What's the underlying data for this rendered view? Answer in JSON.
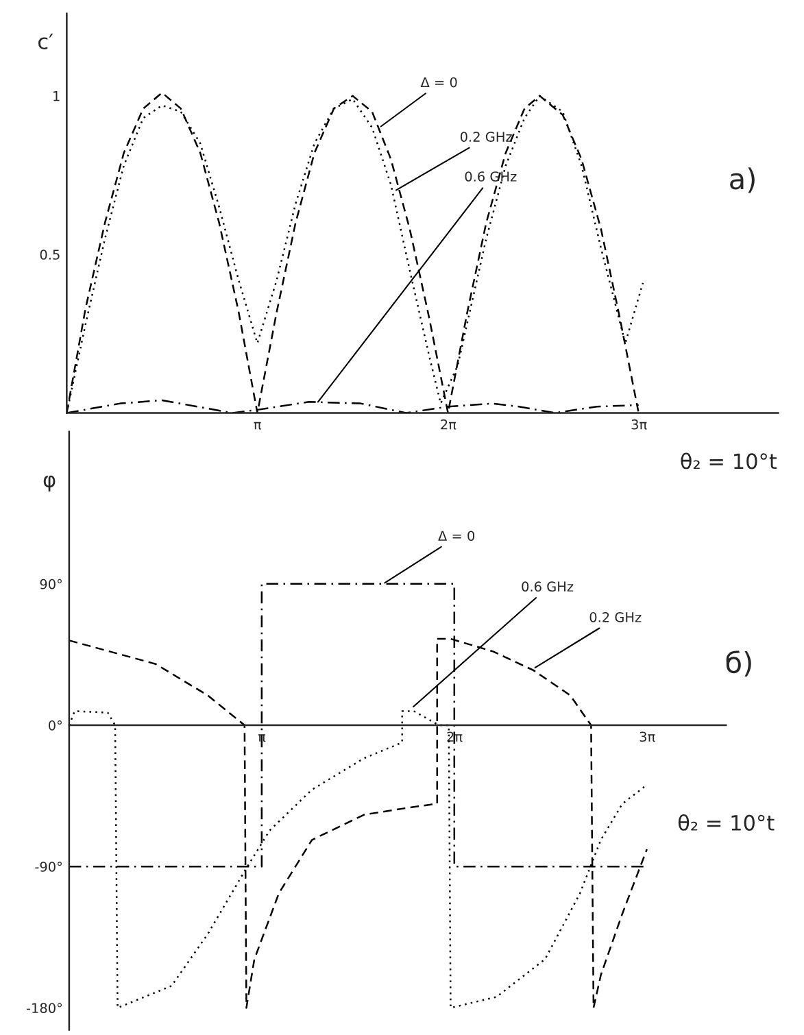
{
  "chart_data": [
    {
      "type": "line",
      "ylabel": "c′",
      "xlabel": "θ₂ = 10°t",
      "xlim": [
        0,
        11.72
      ],
      "ylim": [
        0,
        1.26
      ],
      "xticks": [
        {
          "value": 3.1416,
          "label": "π"
        },
        {
          "value": 6.2832,
          "label": "2π"
        },
        {
          "value": 9.4248,
          "label": "3π"
        }
      ],
      "yticks": [
        0.5,
        1
      ],
      "grid": false,
      "legend": false,
      "series": [
        {
          "color": "#000000",
          "line_style": "dashed",
          "x": [
            0,
            0.31,
            0.63,
            0.94,
            1.26,
            1.57,
            1.88,
            2.2,
            2.51,
            2.83,
            3.14,
            3.46,
            3.77,
            4.08,
            4.4,
            4.71,
            5.03,
            5.34,
            5.65,
            5.97,
            6.28,
            6.6,
            6.91,
            7.23,
            7.54,
            7.79,
            8.17,
            8.48,
            8.8,
            9.11,
            9.42
          ],
          "values": [
            0,
            0.33,
            0.6,
            0.82,
            0.96,
            1.01,
            0.96,
            0.82,
            0.6,
            0.32,
            0,
            0.32,
            0.6,
            0.82,
            0.96,
            1.0,
            0.95,
            0.8,
            0.58,
            0.3,
            0,
            0.32,
            0.6,
            0.82,
            0.96,
            1.0,
            0.94,
            0.8,
            0.58,
            0.3,
            0
          ]
        },
        {
          "color": "#000000",
          "line_style": "dotted",
          "x": [
            0,
            0.31,
            0.63,
            0.94,
            1.26,
            1.57,
            1.88,
            2.2,
            2.51,
            2.83,
            3.14,
            3.46,
            3.77,
            4.08,
            4.4,
            4.71,
            5.03,
            5.34,
            5.65,
            5.97,
            6.16,
            6.44,
            6.91,
            7.23,
            7.54,
            7.79,
            8.17,
            8.48,
            8.8,
            9.2,
            9.49
          ],
          "values": [
            0,
            0.28,
            0.55,
            0.78,
            0.93,
            0.97,
            0.95,
            0.85,
            0.65,
            0.42,
            0.22,
            0.42,
            0.66,
            0.85,
            0.96,
            0.99,
            0.9,
            0.72,
            0.45,
            0.18,
            0.03,
            0.15,
            0.55,
            0.78,
            0.93,
            1.0,
            0.95,
            0.78,
            0.52,
            0.22,
            0.41
          ]
        },
        {
          "color": "#000000",
          "line_style": "dashdot",
          "x": [
            0,
            0.88,
            1.57,
            2.73,
            3.14,
            3.99,
            4.84,
            5.59,
            6.28,
            7.01,
            7.45,
            8.04,
            8.73,
            9.42
          ],
          "values": [
            0,
            0.03,
            0.04,
            0,
            0.01,
            0.035,
            0.03,
            0,
            0.02,
            0.03,
            0.02,
            0,
            0.02,
            0.025
          ]
        }
      ],
      "annotations": [
        {
          "text": "Δ = 0",
          "x": 5.15,
          "y": 0.9
        },
        {
          "text": "0.2 GHz",
          "x": 5.4,
          "y": 0.7
        },
        {
          "text": "0.6 GHz",
          "x": 4.12,
          "y": 0.03
        },
        "а)"
      ]
    },
    {
      "type": "line",
      "ylabel": "φ",
      "xlabel": "θ₂ = 10°t",
      "xlim": [
        0,
        10.71
      ],
      "ylim": [
        -194,
        187
      ],
      "xticks": [
        {
          "value": 3.1416,
          "label": "π"
        },
        {
          "value": 6.2832,
          "label": "2π"
        },
        {
          "value": 9.4248,
          "label": "3π"
        }
      ],
      "yticks": [
        {
          "value": 90,
          "label": "90°"
        },
        {
          "value": 0,
          "label": "0°"
        },
        {
          "value": -90,
          "label": "-90°"
        },
        {
          "value": -180,
          "label": "-180°"
        }
      ],
      "grid": false,
      "legend": false,
      "series": [
        {
          "color": "#000000",
          "line_style": "dashdot",
          "x": [
            0,
            3.14,
            3.14,
            6.28,
            6.28,
            9.42
          ],
          "values": [
            -90,
            -90,
            90,
            90,
            -90,
            -90
          ]
        },
        {
          "color": "#000000",
          "line_style": "dashed",
          "x": [
            0,
            1.41,
            2.26,
            2.86,
            2.89,
            3.02,
            3.42,
            3.96,
            4.81,
            5.62,
            6.0,
            6.0,
            6.22,
            6.91,
            7.57,
            8.17,
            8.51,
            8.55,
            8.67,
            9.02,
            9.42
          ],
          "values": [
            54,
            39,
            19,
            0,
            -180,
            -149,
            -107,
            -73,
            -57,
            -52,
            -50,
            55,
            55,
            47,
            35,
            19,
            0,
            -180,
            -159,
            -120,
            -79
          ]
        },
        {
          "color": "#000000",
          "line_style": "dotted",
          "x": [
            0,
            0.09,
            0.63,
            0.75,
            0.79,
            1.67,
            2.26,
            2.86,
            3.27,
            3.96,
            4.81,
            5.43,
            5.43,
            5.62,
            6.03,
            6.19,
            6.22,
            6.97,
            7.76,
            8.33,
            8.67,
            9.02,
            9.42
          ],
          "values": [
            0,
            9,
            8,
            0,
            -180,
            -166,
            -133,
            -93,
            -67,
            -41,
            -21,
            -11,
            9,
            9,
            0,
            0,
            -180,
            -173,
            -149,
            -107,
            -73,
            -50,
            -38
          ]
        }
      ],
      "annotations": [
        {
          "text": "Δ = 0",
          "x": 5.12,
          "y": 90
        },
        {
          "text": "0.6 GHz",
          "x": 5.59,
          "y": 11
        },
        {
          "text": "0.2 GHz",
          "x": 7.57,
          "y": 36
        },
        "б)"
      ]
    }
  ]
}
